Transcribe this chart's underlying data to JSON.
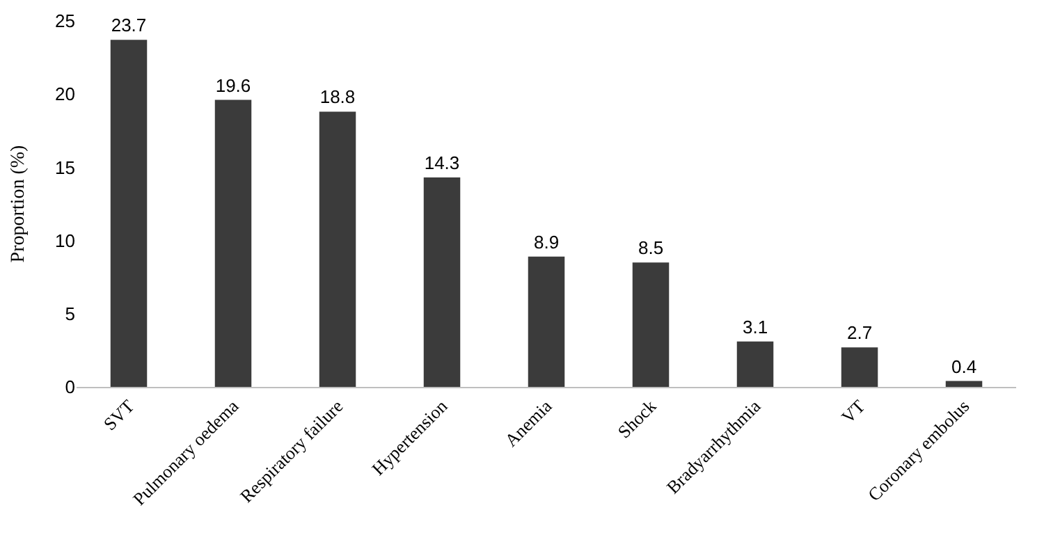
{
  "chart_data": {
    "type": "bar",
    "ylabel": "Proportion (%)",
    "categories": [
      "SVT",
      "Pulmonary oedema",
      "Respiratory failure",
      "Hypertension",
      "Anemia",
      "Shock",
      "Bradyarrhythmia",
      "VT",
      "Coronary embolus"
    ],
    "values": [
      23.7,
      19.6,
      18.8,
      14.3,
      8.9,
      8.5,
      3.1,
      2.7,
      0.4
    ],
    "color": "#3b3b3b",
    "ylim": [
      0,
      25
    ],
    "yticks": [
      0,
      5,
      10,
      15,
      20,
      25
    ],
    "grid": false,
    "data_labels": true
  }
}
